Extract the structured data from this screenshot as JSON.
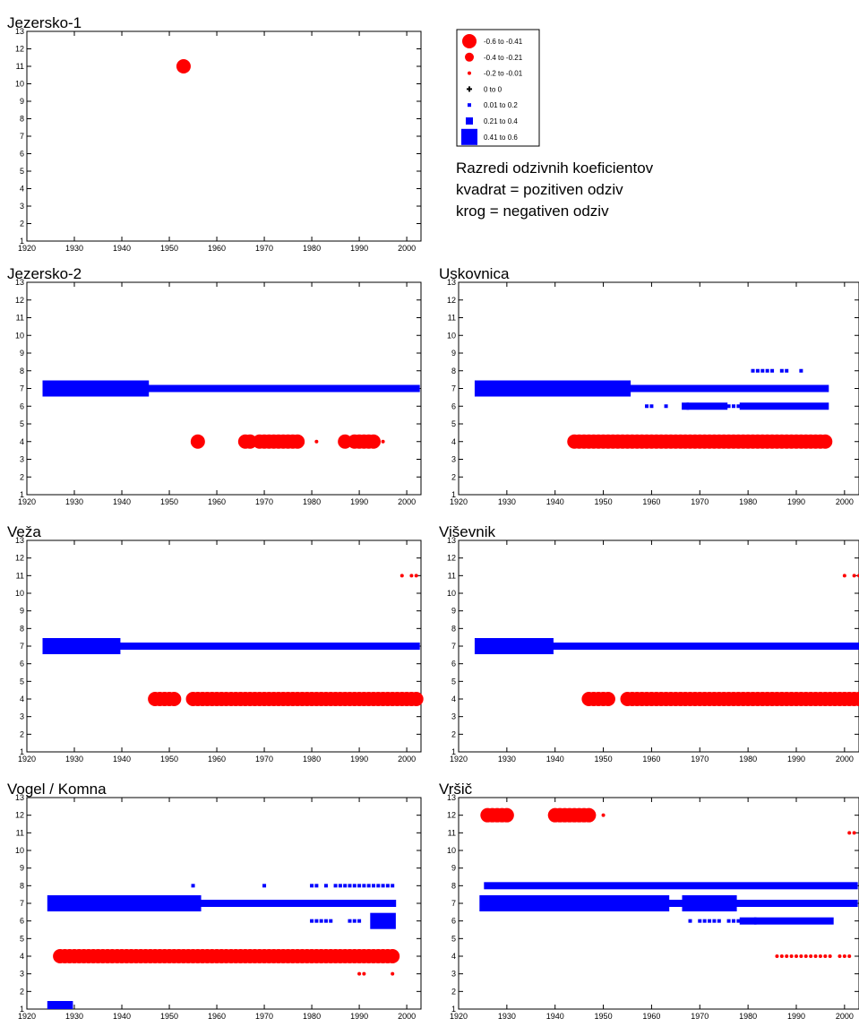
{
  "chart_data": [
    {
      "type": "scatter",
      "title": "Jezersko-1",
      "xlim": [
        1920,
        2003
      ],
      "ylim": [
        1,
        13
      ],
      "xticks": [
        1920,
        1930,
        1940,
        1950,
        1960,
        1970,
        1980,
        1990,
        2000
      ],
      "yticks": [
        1,
        2,
        3,
        4,
        5,
        6,
        7,
        8,
        9,
        10,
        11,
        12,
        13
      ],
      "series": [
        {
          "shape": "circle",
          "color": "#ff0000",
          "points": [
            {
              "x": 1953,
              "y": 11,
              "class": 0
            }
          ]
        }
      ]
    },
    {
      "type": "scatter",
      "title": "Jezersko-2",
      "xlim": [
        1920,
        2003
      ],
      "ylim": [
        1,
        13
      ],
      "xticks": [
        1920,
        1930,
        1940,
        1950,
        1960,
        1970,
        1980,
        1990,
        2000
      ],
      "yticks": [
        1,
        2,
        3,
        4,
        5,
        6,
        7,
        8,
        9,
        10,
        11,
        12,
        13
      ],
      "series": [
        {
          "shape": "square",
          "color": "#0000ff",
          "y": 7,
          "runs": [
            [
              1925,
              1938,
              6
            ],
            [
              1939,
              1939,
              5
            ],
            [
              1941,
              1944,
              6
            ],
            [
              1945,
              2002,
              5
            ]
          ]
        },
        {
          "shape": "circle",
          "color": "#ff0000",
          "y": 4,
          "runs": [
            [
              1956,
              1956,
              0
            ],
            [
              1966,
              1967,
              0
            ],
            [
              1969,
              1977,
              0
            ],
            [
              1981,
              1981,
              2
            ],
            [
              1987,
              1987,
              0
            ],
            [
              1989,
              1993,
              0
            ],
            [
              1995,
              1995,
              2
            ]
          ]
        }
      ]
    },
    {
      "type": "scatter",
      "title": "Uskovnica",
      "xlim": [
        1920,
        2003
      ],
      "ylim": [
        1,
        13
      ],
      "xticks": [
        1920,
        1930,
        1940,
        1950,
        1960,
        1970,
        1980,
        1990,
        2000
      ],
      "yticks": [
        1,
        2,
        3,
        4,
        5,
        6,
        7,
        8,
        9,
        10,
        11,
        12,
        13
      ],
      "series": [
        {
          "shape": "square",
          "color": "#0000ff",
          "y": 7,
          "runs": [
            [
              1925,
              1948,
              6
            ],
            [
              1949,
              1949,
              5
            ],
            [
              1950,
              1954,
              6
            ],
            [
              1955,
              1996,
              5
            ]
          ]
        },
        {
          "shape": "square",
          "color": "#0000ff",
          "y": 6,
          "runs": [
            [
              1959,
              1960,
              4
            ],
            [
              1963,
              1963,
              4
            ],
            [
              1967,
              1967,
              5
            ],
            [
              1968,
              1975,
              5
            ],
            [
              1976,
              1978,
              4
            ],
            [
              1979,
              1996,
              5
            ]
          ]
        },
        {
          "shape": "square",
          "color": "#0000ff",
          "y": 8,
          "runs": [
            [
              1981,
              1985,
              4
            ],
            [
              1987,
              1988,
              4
            ],
            [
              1991,
              1991,
              4
            ]
          ]
        },
        {
          "shape": "circle",
          "color": "#ff0000",
          "y": 4,
          "runs": [
            [
              1944,
              1996,
              0
            ]
          ]
        }
      ]
    },
    {
      "type": "scatter",
      "title": "Veža",
      "xlim": [
        1920,
        2003
      ],
      "ylim": [
        1,
        13
      ],
      "xticks": [
        1920,
        1930,
        1940,
        1950,
        1960,
        1970,
        1980,
        1990,
        2000
      ],
      "yticks": [
        1,
        2,
        3,
        4,
        5,
        6,
        7,
        8,
        9,
        10,
        11,
        12,
        13
      ],
      "series": [
        {
          "shape": "square",
          "color": "#0000ff",
          "y": 7,
          "runs": [
            [
              1925,
              1938,
              6
            ],
            [
              1939,
              2002,
              5
            ]
          ]
        },
        {
          "shape": "circle",
          "color": "#ff0000",
          "y": 4,
          "runs": [
            [
              1947,
              1951,
              0
            ],
            [
              1955,
              2002,
              0
            ]
          ]
        },
        {
          "shape": "circle",
          "color": "#ff0000",
          "y": 11,
          "runs": [
            [
              1999,
              1999,
              2
            ],
            [
              2001,
              2002,
              2
            ]
          ]
        }
      ]
    },
    {
      "type": "scatter",
      "title": "Viševnik",
      "xlim": [
        1920,
        2003
      ],
      "ylim": [
        1,
        13
      ],
      "xticks": [
        1920,
        1930,
        1940,
        1950,
        1960,
        1970,
        1980,
        1990,
        2000
      ],
      "yticks": [
        1,
        2,
        3,
        4,
        5,
        6,
        7,
        8,
        9,
        10,
        11,
        12,
        13
      ],
      "series": [
        {
          "shape": "square",
          "color": "#0000ff",
          "y": 7,
          "runs": [
            [
              1925,
              1938,
              6
            ],
            [
              1939,
              2003,
              5
            ]
          ]
        },
        {
          "shape": "circle",
          "color": "#ff0000",
          "y": 4,
          "runs": [
            [
              1947,
              1951,
              0
            ],
            [
              1955,
              2003,
              0
            ]
          ]
        },
        {
          "shape": "circle",
          "color": "#ff0000",
          "y": 11,
          "runs": [
            [
              2000,
              2000,
              2
            ],
            [
              2002,
              2003,
              2
            ]
          ]
        }
      ]
    },
    {
      "type": "scatter",
      "title": "Vogel / Komna",
      "xlim": [
        1920,
        2003
      ],
      "ylim": [
        1,
        13
      ],
      "xticks": [
        1920,
        1930,
        1940,
        1950,
        1960,
        1970,
        1980,
        1990,
        2000
      ],
      "yticks": [
        1,
        2,
        3,
        4,
        5,
        6,
        7,
        8,
        9,
        10,
        11,
        12,
        13
      ],
      "series": [
        {
          "shape": "square",
          "color": "#0000ff",
          "y": 7,
          "runs": [
            [
              1926,
              1944,
              6
            ],
            [
              1945,
              1945,
              5
            ],
            [
              1946,
              1949,
              6
            ],
            [
              1950,
              1950,
              5
            ],
            [
              1951,
              1955,
              6
            ],
            [
              1956,
              1997,
              5
            ]
          ]
        },
        {
          "shape": "square",
          "color": "#0000ff",
          "y": 8,
          "runs": [
            [
              1955,
              1955,
              4
            ],
            [
              1970,
              1970,
              4
            ],
            [
              1980,
              1981,
              4
            ],
            [
              1983,
              1983,
              4
            ],
            [
              1985,
              1997,
              4
            ]
          ]
        },
        {
          "shape": "square",
          "color": "#0000ff",
          "y": 6,
          "runs": [
            [
              1980,
              1984,
              4
            ],
            [
              1988,
              1990,
              4
            ],
            [
              1994,
              1996,
              6
            ]
          ]
        },
        {
          "shape": "square",
          "color": "#0000ff",
          "y": 1,
          "runs": [
            [
              1926,
              1928,
              6
            ]
          ]
        },
        {
          "shape": "circle",
          "color": "#ff0000",
          "y": 4,
          "runs": [
            [
              1927,
              1997,
              0
            ]
          ]
        },
        {
          "shape": "circle",
          "color": "#ff0000",
          "y": 3,
          "runs": [
            [
              1990,
              1991,
              2
            ],
            [
              1997,
              1997,
              2
            ]
          ]
        }
      ]
    },
    {
      "type": "scatter",
      "title": "Vršič",
      "xlim": [
        1920,
        2003
      ],
      "ylim": [
        1,
        13
      ],
      "xticks": [
        1920,
        1930,
        1940,
        1950,
        1960,
        1970,
        1980,
        1990,
        2000
      ],
      "yticks": [
        1,
        2,
        3,
        4,
        5,
        6,
        7,
        8,
        9,
        10,
        11,
        12,
        13
      ],
      "series": [
        {
          "shape": "square",
          "color": "#0000ff",
          "y": 8,
          "runs": [
            [
              1926,
              2002,
              5
            ]
          ]
        },
        {
          "shape": "square",
          "color": "#0000ff",
          "y": 7,
          "runs": [
            [
              1926,
              1962,
              6
            ],
            [
              1963,
              1967,
              5
            ],
            [
              1968,
              1976,
              6
            ],
            [
              1977,
              2002,
              5
            ]
          ]
        },
        {
          "shape": "square",
          "color": "#0000ff",
          "y": 6,
          "runs": [
            [
              1968,
              1968,
              4
            ],
            [
              1970,
              1974,
              4
            ],
            [
              1976,
              1978,
              4
            ],
            [
              1979,
              1981,
              5
            ],
            [
              1982,
              1997,
              5
            ]
          ]
        },
        {
          "shape": "circle",
          "color": "#ff0000",
          "y": 12,
          "runs": [
            [
              1926,
              1930,
              0
            ],
            [
              1940,
              1942,
              0
            ],
            [
              1943,
              1947,
              0
            ],
            [
              1950,
              1950,
              2
            ]
          ]
        },
        {
          "shape": "circle",
          "color": "#ff0000",
          "y": 11,
          "runs": [
            [
              2001,
              2002,
              2
            ]
          ]
        },
        {
          "shape": "circle",
          "color": "#ff0000",
          "y": 4,
          "runs": [
            [
              1986,
              1997,
              2
            ],
            [
              1999,
              2001,
              2
            ]
          ]
        }
      ]
    }
  ],
  "legend": {
    "entries": [
      {
        "label": "-0.6  to  -0.41",
        "shape": "circle",
        "color": "#ff0000",
        "class": 0
      },
      {
        "label": "-0.4  to  -0.21",
        "shape": "circle",
        "color": "#ff0000",
        "class": 1
      },
      {
        "label": "-0.2  to  -0.01",
        "shape": "circle",
        "color": "#ff0000",
        "class": 2
      },
      {
        "label": "0  to  0",
        "shape": "plus",
        "color": "#000000",
        "class": 3
      },
      {
        "label": "0.01  to  0.2",
        "shape": "square",
        "color": "#0000ff",
        "class": 4
      },
      {
        "label": "0.21  to  0.4",
        "shape": "square",
        "color": "#0000ff",
        "class": 5
      },
      {
        "label": "0.41  to  0.6",
        "shape": "square",
        "color": "#0000ff",
        "class": 6
      }
    ]
  },
  "caption": {
    "line1": "Razredi odzivnih koeficientov",
    "line2": "kvadrat = pozitiven odziv",
    "line3": "krog = negativen odziv"
  }
}
